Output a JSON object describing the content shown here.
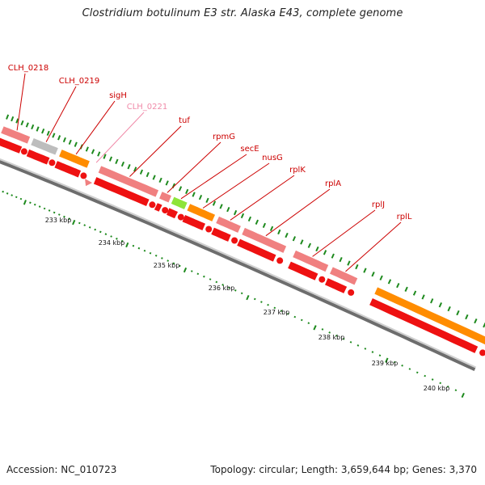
{
  "title": "Clostridium botulinum E3 str. Alaska E43, complete genome",
  "footer": {
    "accession": "Accession: NC_010723",
    "topology": "Topology: circular; Length: 3,659,644 bp; Genes: 3,370"
  },
  "colors": {
    "backbone_dark": "#6d6d6d",
    "backbone_light": "#cfcfcf",
    "tick": "#1e8a1e",
    "label_red": "#cc0000",
    "label_pink": "#f08aa8",
    "gene_pink": "#f08080",
    "cds_red": "#ee1111",
    "rrna_orange": "#ff8c00",
    "gray": "#bdbdbd",
    "green": "#8ee43a"
  },
  "kbp_labels": [
    "233 kbp",
    "234 kbp",
    "235 kbp",
    "236 kbp",
    "237 kbp",
    "238 kbp",
    "239 kbp",
    "240 kbp"
  ],
  "genes": [
    {
      "id": "g1",
      "label": "CLH_0218",
      "label_color": "label_red",
      "kind": "gene",
      "color": "gene_pink"
    },
    {
      "id": "g2",
      "label": "CLH_0219",
      "label_color": "label_red",
      "kind": "gene",
      "color": "gray"
    },
    {
      "id": "g3",
      "label": "sigH",
      "label_color": "label_red",
      "kind": "gene",
      "color": "rrna_orange"
    },
    {
      "id": "g4",
      "label": "CLH_0221",
      "label_color": "label_pink",
      "kind": "gene",
      "color": "gene_pink"
    },
    {
      "id": "g5",
      "label": "tuf",
      "label_color": "label_red",
      "kind": "gene",
      "color": "gene_pink"
    },
    {
      "id": "g6",
      "label": "rpmG",
      "label_color": "label_red",
      "kind": "gene",
      "color": "gene_pink"
    },
    {
      "id": "g7",
      "label": "secE",
      "label_color": "label_red",
      "kind": "gene",
      "color": "green"
    },
    {
      "id": "g8",
      "label": "nusG",
      "label_color": "label_red",
      "kind": "gene",
      "color": "rrna_orange"
    },
    {
      "id": "g9",
      "label": "rplK",
      "label_color": "label_red",
      "kind": "gene",
      "color": "gene_pink"
    },
    {
      "id": "g10",
      "label": "rplA",
      "label_color": "label_red",
      "kind": "gene",
      "color": "gene_pink"
    },
    {
      "id": "g11",
      "label": "rplJ",
      "label_color": "label_red",
      "kind": "gene",
      "color": "gene_pink"
    },
    {
      "id": "g12",
      "label": "rplL",
      "label_color": "label_red",
      "kind": "gene",
      "color": "gene_pink"
    },
    {
      "id": "g13",
      "label": "",
      "label_color": "label_red",
      "kind": "gene",
      "color": "rrna_orange"
    }
  ]
}
